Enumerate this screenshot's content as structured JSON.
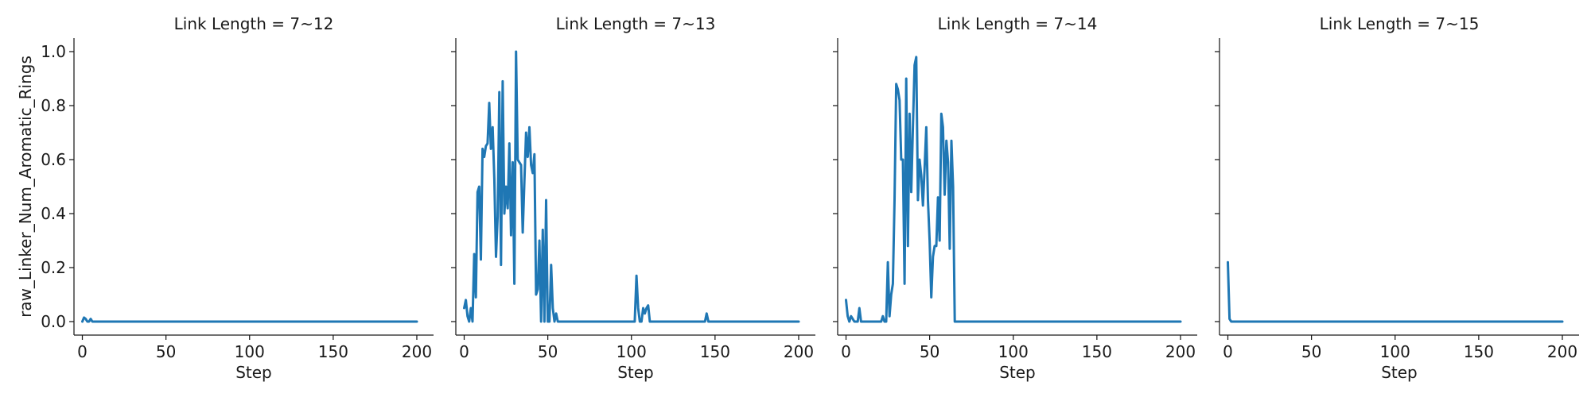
{
  "chart_data": [
    {
      "type": "line",
      "title": "Link Length = 7~12",
      "xlabel": "Step",
      "ylabel": "raw_Linker_Num_Aromatic_Rings",
      "xlim": [
        -5,
        210
      ],
      "ylim": [
        -0.05,
        1.05
      ],
      "xticks": [
        "0",
        "50",
        "100",
        "150",
        "200"
      ],
      "yticks": [
        "0.0",
        "0.2",
        "0.4",
        "0.6",
        "0.8",
        "1.0"
      ],
      "grid": false,
      "series": [
        {
          "color": "#1f77b4",
          "x": [
            0,
            1,
            2,
            3,
            4,
            5,
            6,
            7,
            200
          ],
          "y": [
            0.0,
            0.015,
            0.01,
            0.0,
            0.0,
            0.01,
            0.0,
            0.0,
            0.0
          ]
        }
      ]
    },
    {
      "type": "line",
      "title": "Link Length = 7~13",
      "xlabel": "Step",
      "ylabel": "",
      "xlim": [
        -5,
        210
      ],
      "ylim": [
        -0.05,
        1.05
      ],
      "xticks": [
        "0",
        "50",
        "100",
        "150",
        "200"
      ],
      "yticks": [],
      "grid": false,
      "series": [
        {
          "color": "#1f77b4",
          "x": [
            0,
            1,
            2,
            3,
            4,
            5,
            6,
            7,
            8,
            9,
            10,
            11,
            12,
            13,
            14,
            15,
            16,
            17,
            18,
            19,
            20,
            21,
            22,
            23,
            24,
            25,
            26,
            27,
            28,
            29,
            30,
            31,
            32,
            33,
            34,
            35,
            36,
            37,
            38,
            39,
            40,
            41,
            42,
            43,
            44,
            45,
            46,
            47,
            48,
            49,
            50,
            51,
            52,
            53,
            54,
            55,
            56,
            57,
            58,
            59,
            60,
            61,
            62,
            63,
            64,
            65,
            100,
            101,
            102,
            103,
            104,
            105,
            106,
            107,
            108,
            109,
            110,
            111,
            112,
            143,
            144,
            145,
            146,
            147,
            200
          ],
          "y": [
            0.05,
            0.08,
            0.02,
            0.0,
            0.05,
            0.0,
            0.25,
            0.09,
            0.48,
            0.5,
            0.23,
            0.64,
            0.61,
            0.65,
            0.66,
            0.81,
            0.64,
            0.72,
            0.53,
            0.24,
            0.39,
            0.85,
            0.21,
            0.89,
            0.4,
            0.5,
            0.42,
            0.66,
            0.32,
            0.59,
            0.14,
            1.0,
            0.6,
            0.59,
            0.58,
            0.33,
            0.52,
            0.7,
            0.61,
            0.72,
            0.58,
            0.55,
            0.62,
            0.1,
            0.12,
            0.3,
            0.0,
            0.34,
            0.0,
            0.45,
            0.0,
            0.0,
            0.21,
            0.05,
            0.0,
            0.03,
            0.0,
            0.0,
            0.0,
            0.0,
            0.0,
            0.0,
            0.0,
            0.0,
            0.0,
            0.0,
            0.0,
            0.0,
            0.0,
            0.17,
            0.05,
            0.0,
            0.0,
            0.05,
            0.03,
            0.05,
            0.06,
            0.0,
            0.0,
            0.0,
            0.0,
            0.03,
            0.0,
            0.0,
            0.0
          ]
        }
      ]
    },
    {
      "type": "line",
      "title": "Link Length = 7~14",
      "xlabel": "Step",
      "ylabel": "",
      "xlim": [
        -5,
        210
      ],
      "ylim": [
        -0.05,
        1.05
      ],
      "xticks": [
        "0",
        "50",
        "100",
        "150",
        "200"
      ],
      "yticks": [],
      "grid": false,
      "series": [
        {
          "color": "#1f77b4",
          "x": [
            0,
            1,
            2,
            3,
            4,
            5,
            6,
            7,
            8,
            9,
            10,
            11,
            12,
            13,
            14,
            15,
            16,
            17,
            18,
            19,
            20,
            21,
            22,
            23,
            24,
            25,
            26,
            27,
            28,
            29,
            30,
            31,
            32,
            33,
            34,
            35,
            36,
            37,
            38,
            39,
            40,
            41,
            42,
            43,
            44,
            45,
            46,
            47,
            48,
            49,
            50,
            51,
            52,
            53,
            54,
            55,
            56,
            57,
            58,
            59,
            60,
            61,
            62,
            63,
            64,
            65,
            66,
            67,
            200
          ],
          "y": [
            0.08,
            0.02,
            0.0,
            0.02,
            0.01,
            0.0,
            0.0,
            0.0,
            0.05,
            0.0,
            0.0,
            0.0,
            0.0,
            0.0,
            0.0,
            0.0,
            0.0,
            0.0,
            0.0,
            0.0,
            0.0,
            0.0,
            0.02,
            0.0,
            0.0,
            0.22,
            0.02,
            0.1,
            0.14,
            0.45,
            0.88,
            0.86,
            0.82,
            0.6,
            0.6,
            0.14,
            0.9,
            0.28,
            0.77,
            0.48,
            0.72,
            0.95,
            0.98,
            0.45,
            0.6,
            0.54,
            0.43,
            0.57,
            0.72,
            0.45,
            0.3,
            0.09,
            0.24,
            0.28,
            0.28,
            0.46,
            0.3,
            0.77,
            0.72,
            0.47,
            0.67,
            0.59,
            0.27,
            0.67,
            0.5,
            0.0,
            0.0,
            0.0,
            0.0
          ]
        }
      ]
    },
    {
      "type": "line",
      "title": "Link Length = 7~15",
      "xlabel": "Step",
      "ylabel": "",
      "xlim": [
        -5,
        210
      ],
      "ylim": [
        -0.05,
        1.05
      ],
      "xticks": [
        "0",
        "50",
        "100",
        "150",
        "200"
      ],
      "yticks": [],
      "grid": false,
      "series": [
        {
          "color": "#1f77b4",
          "x": [
            0,
            1,
            2,
            200
          ],
          "y": [
            0.22,
            0.01,
            0.0,
            0.0
          ]
        }
      ]
    }
  ]
}
